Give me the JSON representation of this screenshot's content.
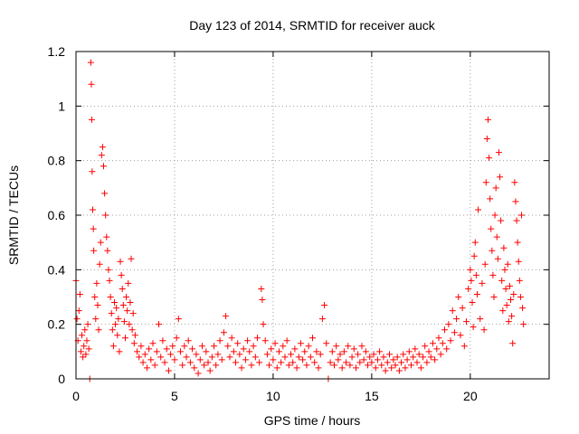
{
  "chart_data": {
    "type": "scatter",
    "title": "Day 123 of 2014, SRMTID for receiver auck",
    "xlabel": "GPS time / hours",
    "ylabel": "SRMTID / TECUs",
    "xlim": [
      0,
      24
    ],
    "ylim": [
      0,
      1.2
    ],
    "xticks": [
      0,
      5,
      10,
      15,
      20
    ],
    "xtick_labels": [
      "0",
      "5",
      "10",
      "15",
      "20"
    ],
    "yticks": [
      0,
      0.2,
      0.4,
      0.6,
      0.8,
      1,
      1.2
    ],
    "ytick_labels": [
      "0",
      "0.2",
      "0.4",
      "0.6",
      "0.8",
      "1",
      "1.2"
    ],
    "grid": true,
    "marker": "+",
    "series_color": "#ff0000",
    "series": [
      {
        "name": "SRMTID",
        "points": [
          [
            0.0,
            0.36
          ],
          [
            0.05,
            0.22
          ],
          [
            0.1,
            0.14
          ],
          [
            0.15,
            0.25
          ],
          [
            0.2,
            0.31
          ],
          [
            0.25,
            0.1
          ],
          [
            0.3,
            0.16
          ],
          [
            0.35,
            0.08
          ],
          [
            0.4,
            0.12
          ],
          [
            0.45,
            0.18
          ],
          [
            0.5,
            0.09
          ],
          [
            0.55,
            0.14
          ],
          [
            0.6,
            0.2
          ],
          [
            0.65,
            0.11
          ],
          [
            0.7,
            0.0
          ],
          [
            0.75,
            1.16
          ],
          [
            0.78,
            1.08
          ],
          [
            0.8,
            0.95
          ],
          [
            0.82,
            0.76
          ],
          [
            0.85,
            0.62
          ],
          [
            0.88,
            0.55
          ],
          [
            0.9,
            0.47
          ],
          [
            0.95,
            0.3
          ],
          [
            1.0,
            0.22
          ],
          [
            1.05,
            0.35
          ],
          [
            1.1,
            0.27
          ],
          [
            1.15,
            0.18
          ],
          [
            1.2,
            0.42
          ],
          [
            1.25,
            0.5
          ],
          [
            1.3,
            0.82
          ],
          [
            1.35,
            0.85
          ],
          [
            1.4,
            0.78
          ],
          [
            1.45,
            0.68
          ],
          [
            1.5,
            0.6
          ],
          [
            1.55,
            0.52
          ],
          [
            1.6,
            0.47
          ],
          [
            1.65,
            0.4
          ],
          [
            1.7,
            0.36
          ],
          [
            1.75,
            0.3
          ],
          [
            1.8,
            0.24
          ],
          [
            1.85,
            0.18
          ],
          [
            1.9,
            0.12
          ],
          [
            1.95,
            0.28
          ],
          [
            2.0,
            0.2
          ],
          [
            2.05,
            0.26
          ],
          [
            2.1,
            0.16
          ],
          [
            2.15,
            0.22
          ],
          [
            2.2,
            0.1
          ],
          [
            2.25,
            0.43
          ],
          [
            2.3,
            0.38
          ],
          [
            2.35,
            0.33
          ],
          [
            2.4,
            0.27
          ],
          [
            2.45,
            0.21
          ],
          [
            2.5,
            0.15
          ],
          [
            2.55,
            0.3
          ],
          [
            2.6,
            0.25
          ],
          [
            2.65,
            0.35
          ],
          [
            2.7,
            0.2
          ],
          [
            2.75,
            0.28
          ],
          [
            2.8,
            0.44
          ],
          [
            2.85,
            0.18
          ],
          [
            2.9,
            0.24
          ],
          [
            2.95,
            0.13
          ],
          [
            3.0,
            0.16
          ],
          [
            3.1,
            0.1
          ],
          [
            3.2,
            0.08
          ],
          [
            3.3,
            0.12
          ],
          [
            3.4,
            0.06
          ],
          [
            3.5,
            0.09
          ],
          [
            3.6,
            0.04
          ],
          [
            3.7,
            0.11
          ],
          [
            3.8,
            0.07
          ],
          [
            3.9,
            0.13
          ],
          [
            4.0,
            0.05
          ],
          [
            4.1,
            0.1
          ],
          [
            4.2,
            0.2
          ],
          [
            4.3,
            0.08
          ],
          [
            4.4,
            0.14
          ],
          [
            4.5,
            0.06
          ],
          [
            4.6,
            0.11
          ],
          [
            4.7,
            0.03
          ],
          [
            4.8,
            0.09
          ],
          [
            4.9,
            0.12
          ],
          [
            5.0,
            0.07
          ],
          [
            5.1,
            0.15
          ],
          [
            5.2,
            0.22
          ],
          [
            5.3,
            0.1
          ],
          [
            5.4,
            0.05
          ],
          [
            5.5,
            0.12
          ],
          [
            5.6,
            0.08
          ],
          [
            5.7,
            0.14
          ],
          [
            5.8,
            0.06
          ],
          [
            5.9,
            0.11
          ],
          [
            6.0,
            0.04
          ],
          [
            6.1,
            0.09
          ],
          [
            6.2,
            0.02
          ],
          [
            6.3,
            0.07
          ],
          [
            6.4,
            0.12
          ],
          [
            6.5,
            0.05
          ],
          [
            6.6,
            0.1
          ],
          [
            6.7,
            0.06
          ],
          [
            6.8,
            0.03
          ],
          [
            6.9,
            0.08
          ],
          [
            7.0,
            0.12
          ],
          [
            7.1,
            0.05
          ],
          [
            7.2,
            0.09
          ],
          [
            7.3,
            0.14
          ],
          [
            7.4,
            0.07
          ],
          [
            7.5,
            0.17
          ],
          [
            7.6,
            0.23
          ],
          [
            7.7,
            0.12
          ],
          [
            7.8,
            0.08
          ],
          [
            7.9,
            0.15
          ],
          [
            8.0,
            0.1
          ],
          [
            8.1,
            0.06
          ],
          [
            8.2,
            0.13
          ],
          [
            8.3,
            0.09
          ],
          [
            8.4,
            0.04
          ],
          [
            8.5,
            0.11
          ],
          [
            8.6,
            0.07
          ],
          [
            8.7,
            0.14
          ],
          [
            8.8,
            0.1
          ],
          [
            8.9,
            0.05
          ],
          [
            9.0,
            0.12
          ],
          [
            9.1,
            0.08
          ],
          [
            9.2,
            0.15
          ],
          [
            9.3,
            0.06
          ],
          [
            9.4,
            0.33
          ],
          [
            9.45,
            0.29
          ],
          [
            9.5,
            0.2
          ],
          [
            9.6,
            0.14
          ],
          [
            9.7,
            0.09
          ],
          [
            9.8,
            0.05
          ],
          [
            9.9,
            0.11
          ],
          [
            10.0,
            0.07
          ],
          [
            10.1,
            0.13
          ],
          [
            10.2,
            0.04
          ],
          [
            10.3,
            0.1
          ],
          [
            10.4,
            0.06
          ],
          [
            10.5,
            0.12
          ],
          [
            10.6,
            0.08
          ],
          [
            10.7,
            0.14
          ],
          [
            10.8,
            0.05
          ],
          [
            10.9,
            0.09
          ],
          [
            11.0,
            0.06
          ],
          [
            11.1,
            0.11
          ],
          [
            11.2,
            0.04
          ],
          [
            11.3,
            0.08
          ],
          [
            11.4,
            0.13
          ],
          [
            11.5,
            0.07
          ],
          [
            11.6,
            0.1
          ],
          [
            11.7,
            0.05
          ],
          [
            11.8,
            0.12
          ],
          [
            11.9,
            0.08
          ],
          [
            12.0,
            0.15
          ],
          [
            12.1,
            0.06
          ],
          [
            12.2,
            0.1
          ],
          [
            12.3,
            0.04
          ],
          [
            12.4,
            0.09
          ],
          [
            12.5,
            0.22
          ],
          [
            12.6,
            0.27
          ],
          [
            12.7,
            0.13
          ],
          [
            12.8,
            0.0
          ],
          [
            12.9,
            0.06
          ],
          [
            13.0,
            0.1
          ],
          [
            13.1,
            0.05
          ],
          [
            13.2,
            0.12
          ],
          [
            13.3,
            0.07
          ],
          [
            13.4,
            0.09
          ],
          [
            13.5,
            0.04
          ],
          [
            13.6,
            0.1
          ],
          [
            13.7,
            0.06
          ],
          [
            13.8,
            0.12
          ],
          [
            13.9,
            0.05
          ],
          [
            14.0,
            0.08
          ],
          [
            14.1,
            0.11
          ],
          [
            14.2,
            0.04
          ],
          [
            14.3,
            0.09
          ],
          [
            14.4,
            0.06
          ],
          [
            14.5,
            0.12
          ],
          [
            14.6,
            0.07
          ],
          [
            14.7,
            0.1
          ],
          [
            14.8,
            0.05
          ],
          [
            14.9,
            0.08
          ],
          [
            15.0,
            0.06
          ],
          [
            15.1,
            0.09
          ],
          [
            15.2,
            0.04
          ],
          [
            15.3,
            0.07
          ],
          [
            15.4,
            0.1
          ],
          [
            15.5,
            0.05
          ],
          [
            15.6,
            0.08
          ],
          [
            15.7,
            0.03
          ],
          [
            15.8,
            0.06
          ],
          [
            15.9,
            0.09
          ],
          [
            16.0,
            0.04
          ],
          [
            16.1,
            0.07
          ],
          [
            16.2,
            0.05
          ],
          [
            16.3,
            0.08
          ],
          [
            16.4,
            0.03
          ],
          [
            16.5,
            0.06
          ],
          [
            16.6,
            0.09
          ],
          [
            16.7,
            0.04
          ],
          [
            16.8,
            0.07
          ],
          [
            16.9,
            0.1
          ],
          [
            17.0,
            0.05
          ],
          [
            17.1,
            0.08
          ],
          [
            17.2,
            0.11
          ],
          [
            17.3,
            0.06
          ],
          [
            17.4,
            0.09
          ],
          [
            17.5,
            0.04
          ],
          [
            17.6,
            0.08
          ],
          [
            17.7,
            0.12
          ],
          [
            17.8,
            0.06
          ],
          [
            17.9,
            0.1
          ],
          [
            18.0,
            0.08
          ],
          [
            18.1,
            0.13
          ],
          [
            18.2,
            0.07
          ],
          [
            18.3,
            0.11
          ],
          [
            18.4,
            0.15
          ],
          [
            18.5,
            0.09
          ],
          [
            18.6,
            0.13
          ],
          [
            18.7,
            0.18
          ],
          [
            18.8,
            0.11
          ],
          [
            18.9,
            0.2
          ],
          [
            19.0,
            0.14
          ],
          [
            19.1,
            0.25
          ],
          [
            19.2,
            0.17
          ],
          [
            19.3,
            0.22
          ],
          [
            19.4,
            0.3
          ],
          [
            19.5,
            0.16
          ],
          [
            19.6,
            0.26
          ],
          [
            19.7,
            0.12
          ],
          [
            19.8,
            0.21
          ],
          [
            19.9,
            0.33
          ],
          [
            20.0,
            0.4
          ],
          [
            20.05,
            0.36
          ],
          [
            20.1,
            0.28
          ],
          [
            20.15,
            0.19
          ],
          [
            20.2,
            0.45
          ],
          [
            20.25,
            0.5
          ],
          [
            20.3,
            0.38
          ],
          [
            20.35,
            0.31
          ],
          [
            20.4,
            0.62
          ],
          [
            20.5,
            0.22
          ],
          [
            20.6,
            0.35
          ],
          [
            20.7,
            0.18
          ],
          [
            20.75,
            0.42
          ],
          [
            20.8,
            0.72
          ],
          [
            20.85,
            0.88
          ],
          [
            20.9,
            0.95
          ],
          [
            20.95,
            0.81
          ],
          [
            21.0,
            0.66
          ],
          [
            21.05,
            0.55
          ],
          [
            21.1,
            0.47
          ],
          [
            21.15,
            0.38
          ],
          [
            21.2,
            0.3
          ],
          [
            21.25,
            0.6
          ],
          [
            21.3,
            0.7
          ],
          [
            21.35,
            0.52
          ],
          [
            21.4,
            0.44
          ],
          [
            21.45,
            0.83
          ],
          [
            21.5,
            0.74
          ],
          [
            21.55,
            0.58
          ],
          [
            21.6,
            0.36
          ],
          [
            21.65,
            0.25
          ],
          [
            21.7,
            0.48
          ],
          [
            21.75,
            0.4
          ],
          [
            21.8,
            0.33
          ],
          [
            21.85,
            0.27
          ],
          [
            21.9,
            0.42
          ],
          [
            21.95,
            0.21
          ],
          [
            22.0,
            0.34
          ],
          [
            22.05,
            0.29
          ],
          [
            22.1,
            0.23
          ],
          [
            22.15,
            0.13
          ],
          [
            22.2,
            0.31
          ],
          [
            22.25,
            0.72
          ],
          [
            22.3,
            0.65
          ],
          [
            22.35,
            0.58
          ],
          [
            22.4,
            0.5
          ],
          [
            22.45,
            0.43
          ],
          [
            22.5,
            0.36
          ],
          [
            22.55,
            0.3
          ],
          [
            22.6,
            0.6
          ],
          [
            22.65,
            0.26
          ],
          [
            22.7,
            0.2
          ]
        ]
      }
    ]
  }
}
